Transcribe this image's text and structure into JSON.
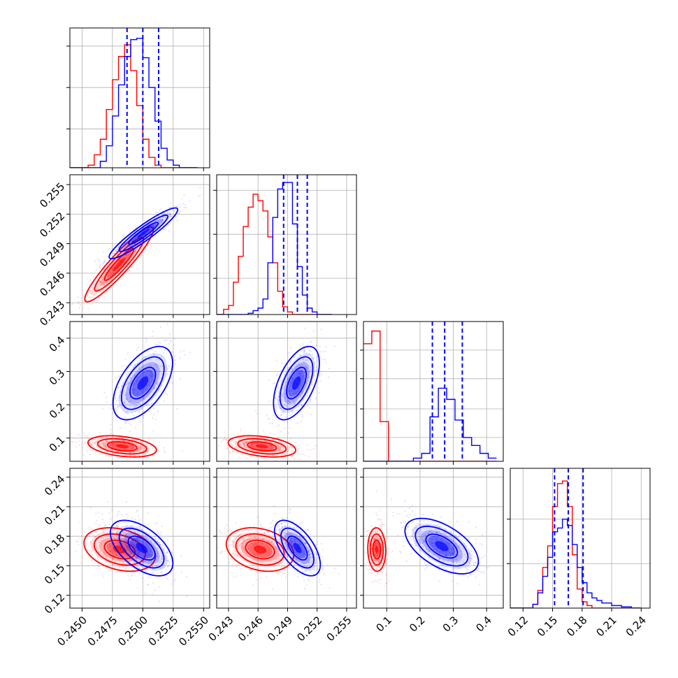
{
  "chart_data": {
    "type": "corner",
    "grid": true,
    "series": [
      {
        "color": "#ff0000"
      },
      {
        "color": "#0000ff"
      }
    ],
    "parameters": [
      {
        "range": [
          0.244,
          0.2555
        ],
        "ticks": [
          "0.2450",
          "0.2475",
          "0.2500",
          "0.2525",
          "0.2550"
        ],
        "tick_values": [
          0.245,
          0.2475,
          0.25,
          0.2525,
          0.255
        ]
      },
      {
        "range": [
          0.2418,
          0.256
        ],
        "ticks": [
          "0.243",
          "0.246",
          "0.249",
          "0.252",
          "0.255"
        ],
        "tick_values": [
          0.243,
          0.246,
          0.249,
          0.252,
          0.255
        ]
      },
      {
        "range": [
          0.03,
          0.45
        ],
        "ticks": [
          "0.1",
          "0.2",
          "0.3",
          "0.4"
        ],
        "tick_values": [
          0.1,
          0.2,
          0.3,
          0.4
        ]
      },
      {
        "range": [
          0.107,
          0.249
        ],
        "ticks": [
          "0.12",
          "0.15",
          "0.18",
          "0.21",
          "0.24"
        ],
        "tick_values": [
          0.12,
          0.15,
          0.18,
          0.21,
          0.24
        ]
      }
    ],
    "quantiles_blue": [
      [
        0.2487,
        0.25,
        0.2513
      ],
      [
        0.2486,
        0.25,
        0.251
      ],
      [
        0.237,
        0.274,
        0.327
      ],
      [
        0.152,
        0.166,
        0.181
      ]
    ],
    "histograms": [
      {
        "edges": [
          0.244,
          0.2455,
          0.246,
          0.2465,
          0.247,
          0.2475,
          0.248,
          0.2485,
          0.249,
          0.2495,
          0.25,
          0.2505,
          0.251,
          0.2515,
          0.252,
          0.2525,
          0.253,
          0.2535,
          0.254,
          0.2545
        ],
        "red": [
          0.0,
          0.02,
          0.1,
          0.22,
          0.45,
          0.68,
          0.86,
          0.95,
          0.75,
          0.48,
          0.22,
          0.08,
          0.02,
          0.0,
          0.0,
          0.0,
          0.0,
          0.0,
          0.0
        ],
        "blue": [
          0.0,
          0.0,
          0.0,
          0.05,
          0.17,
          0.4,
          0.64,
          0.86,
          0.99,
          1.0,
          0.85,
          0.62,
          0.36,
          0.15,
          0.06,
          0.02,
          0.0,
          0.0,
          0.0
        ]
      },
      {
        "edges": [
          0.2418,
          0.2425,
          0.243,
          0.2435,
          0.244,
          0.2445,
          0.245,
          0.2455,
          0.246,
          0.2465,
          0.247,
          0.2475,
          0.248,
          0.2485,
          0.249,
          0.2495,
          0.25,
          0.2505,
          0.251,
          0.2515,
          0.252,
          0.2525,
          0.253,
          0.2535
        ],
        "red": [
          0.0,
          0.04,
          0.07,
          0.25,
          0.45,
          0.68,
          0.83,
          0.93,
          0.88,
          0.8,
          0.6,
          0.4,
          0.18,
          0.06,
          0.02,
          0.0,
          0.0,
          0.0,
          0.0,
          0.0,
          0.0,
          0.0,
          0.0
        ],
        "blue": [
          0.0,
          0.0,
          0.0,
          0.0,
          0.0,
          0.0,
          0.01,
          0.03,
          0.05,
          0.12,
          0.4,
          0.75,
          0.97,
          1.02,
          1.02,
          0.7,
          0.37,
          0.15,
          0.05,
          0.02,
          0.0,
          0.0,
          0.0
        ]
      },
      {
        "edges": [
          0.03,
          0.055,
          0.08,
          0.105,
          0.13,
          0.155,
          0.18,
          0.205,
          0.23,
          0.255,
          0.28,
          0.305,
          0.33,
          0.355,
          0.38,
          0.405,
          0.43
        ],
        "red": [
          0.74,
          0.82,
          0.25,
          0.0,
          0.0,
          0.0,
          0.0,
          0.0,
          0.0,
          0.0,
          0.0,
          0.0,
          0.0,
          0.0,
          0.0,
          0.0
        ],
        "blue": [
          0.0,
          0.0,
          0.0,
          0.0,
          0.0,
          0.0,
          0.02,
          0.05,
          0.28,
          0.46,
          0.39,
          0.26,
          0.15,
          0.1,
          0.05,
          0.02
        ]
      },
      {
        "edges": [
          0.107,
          0.115,
          0.13,
          0.135,
          0.14,
          0.145,
          0.15,
          0.155,
          0.16,
          0.165,
          0.17,
          0.175,
          0.18,
          0.185,
          0.19,
          0.195,
          0.2,
          0.21,
          0.22,
          0.23,
          0.24
        ],
        "red": [
          0.0,
          0.0,
          0.03,
          0.14,
          0.32,
          0.49,
          0.8,
          0.98,
          1.0,
          0.8,
          0.42,
          0.15,
          0.05,
          0.02,
          0.0,
          0.0,
          0.0,
          0.0,
          0.0,
          0.0
        ],
        "blue": [
          0.0,
          0.0,
          0.03,
          0.12,
          0.25,
          0.4,
          0.6,
          0.63,
          0.7,
          0.65,
          0.5,
          0.32,
          0.2,
          0.12,
          0.08,
          0.06,
          0.04,
          0.02,
          0.01,
          0.0
        ]
      }
    ],
    "hist_ymax": [
      1.08,
      1.08,
      0.88,
      1.1
    ],
    "hist_grid": [
      [
        0.3,
        0.62,
        0.94
      ],
      [
        0.28,
        0.62,
        0.96
      ],
      [
        0.15,
        0.33,
        0.52,
        0.7
      ],
      [
        0.35,
        0.7
      ]
    ],
    "joint": [
      {
        "row": 1,
        "col": 0,
        "red": {
          "mx": 0.24805,
          "my": 0.2469,
          "sx": 0.00115,
          "sy": 0.00155,
          "rho": 0.93
        },
        "blue": {
          "mx": 0.25005,
          "my": 0.25005,
          "sx": 0.00115,
          "sy": 0.00105,
          "rho": 0.93
        }
      },
      {
        "row": 2,
        "col": 0,
        "red": {
          "mx": 0.2483,
          "my": 0.075,
          "sx": 0.00115,
          "sy": 0.013,
          "rho": -0.35
        },
        "blue": {
          "mx": 0.25,
          "my": 0.265,
          "sx": 0.001,
          "sy": 0.045,
          "rho": 0.55
        }
      },
      {
        "row": 2,
        "col": 1,
        "red": {
          "mx": 0.2464,
          "my": 0.075,
          "sx": 0.0014,
          "sy": 0.013,
          "rho": -0.35
        },
        "blue": {
          "mx": 0.2499,
          "my": 0.265,
          "sx": 0.00095,
          "sy": 0.045,
          "rho": 0.55
        }
      },
      {
        "row": 3,
        "col": 0,
        "red": {
          "mx": 0.2481,
          "my": 0.1665,
          "sx": 0.0012,
          "sy": 0.009,
          "rho": -0.3
        },
        "blue": {
          "mx": 0.2499,
          "my": 0.168,
          "sx": 0.00105,
          "sy": 0.0115,
          "rho": -0.55
        }
      },
      {
        "row": 3,
        "col": 1,
        "red": {
          "mx": 0.2462,
          "my": 0.1665,
          "sx": 0.0014,
          "sy": 0.009,
          "rho": -0.25
        },
        "blue": {
          "mx": 0.25,
          "my": 0.168,
          "sx": 0.00095,
          "sy": 0.0115,
          "rho": -0.6
        }
      },
      {
        "row": 3,
        "col": 2,
        "red": {
          "mx": 0.07,
          "my": 0.1665,
          "sx": 0.011,
          "sy": 0.009,
          "rho": -0.05
        },
        "blue": {
          "mx": 0.265,
          "my": 0.17,
          "sx": 0.045,
          "sy": 0.0115,
          "rho": -0.55
        }
      }
    ]
  }
}
